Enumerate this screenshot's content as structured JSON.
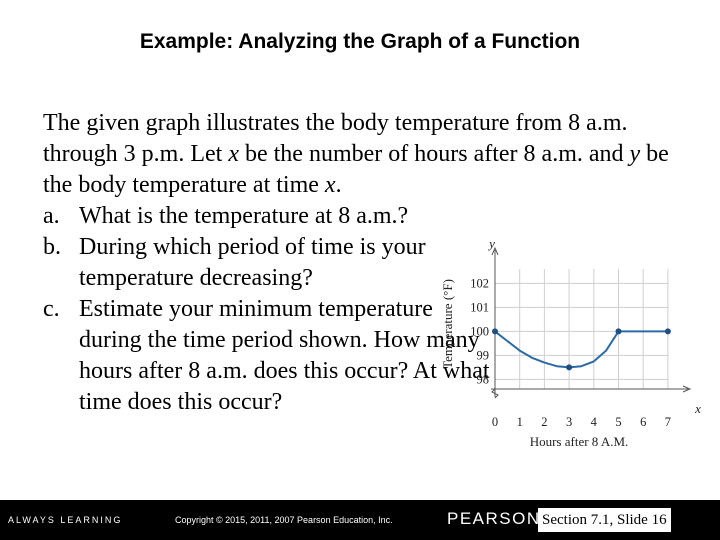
{
  "slide": {
    "title": "Example: Analyzing the Graph of a Function",
    "intro": {
      "p1": "The given graph illustrates the body temperature from 8 a.m. through 3 p.m. Let ",
      "var_x": "x",
      "p2": " be the number of hours after 8 a.m. and ",
      "var_y": "y",
      "p3": " be the body temperature at time ",
      "var_x2": "x",
      "p4": "."
    },
    "questions": [
      {
        "marker": "a.",
        "text": "What is the temperature at 8 a.m.?"
      },
      {
        "marker": "b.",
        "text": "During which period of time is your temperature decreasing?"
      },
      {
        "marker": "c.",
        "text": "Estimate your minimum temperature during the time period shown. How many hours after 8 a.m. does this occur? At what time does this occur?"
      }
    ]
  },
  "chart_data": {
    "type": "line",
    "x_variable": "x",
    "y_variable": "y",
    "xlabel": "Hours after 8 A.M.",
    "ylabel": "Temperature (°F)",
    "x_ticks": [
      0,
      1,
      2,
      3,
      4,
      5,
      6,
      7
    ],
    "y_ticks": [
      98,
      99,
      100,
      101,
      102
    ],
    "xlim": [
      0,
      7
    ],
    "ylim": [
      97.6,
      102.6
    ],
    "grid": true,
    "series": [
      {
        "x": [
          0,
          0.5,
          1,
          1.5,
          2,
          2.5,
          3,
          3.5,
          4,
          4.5,
          5,
          6,
          7
        ],
        "y": [
          100,
          99.6,
          99.2,
          98.9,
          98.7,
          98.55,
          98.5,
          98.55,
          98.75,
          99.2,
          100,
          100,
          100
        ]
      }
    ],
    "points": [
      {
        "x": 0,
        "y": 100
      },
      {
        "x": 3,
        "y": 98.5
      },
      {
        "x": 5,
        "y": 100
      },
      {
        "x": 7,
        "y": 100
      }
    ],
    "line_color": "#2e6aa5",
    "point_color": "#1e4f80",
    "grid_color": "#cfcfcf"
  },
  "footer": {
    "tagline": "ALWAYS LEARNING",
    "copyright": "Copyright © 2015, 2011, 2007 Pearson Education, Inc.",
    "brand": "PEARSON",
    "section": "Section 7.1, Slide 16"
  }
}
